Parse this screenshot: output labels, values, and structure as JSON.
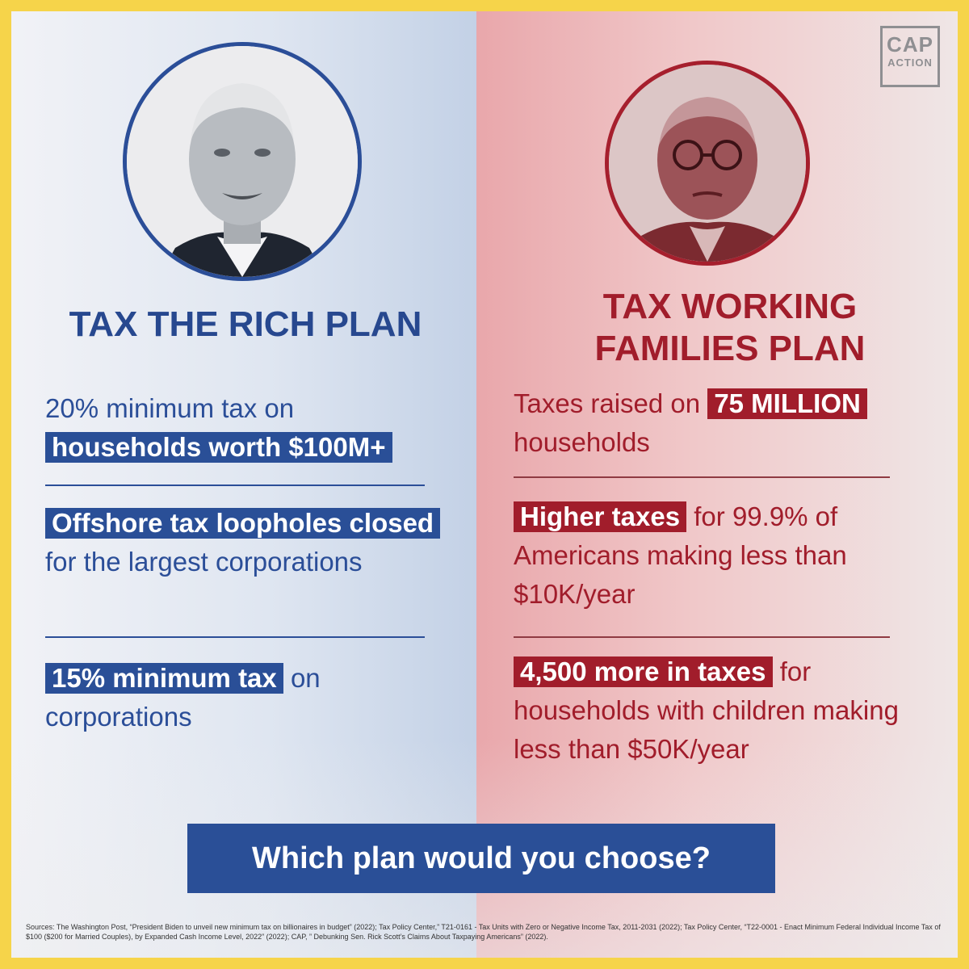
{
  "logo": {
    "line1": "CAP",
    "line2": "ACTION"
  },
  "left": {
    "title": "TAX THE RICH PLAN",
    "items": [
      {
        "before": "20% minimum tax on",
        "highlight": "households worth $100M+",
        "after": ""
      },
      {
        "before": "",
        "highlight": "Offshore tax loopholes closed",
        "after": "for the largest corporations"
      },
      {
        "before": "",
        "highlight": "15% minimum tax",
        "after": "on corporations"
      }
    ]
  },
  "right": {
    "title_line1": "TAX WORKING",
    "title_line2": "FAMILIES PLAN",
    "items": [
      {
        "before": "Taxes raised on",
        "highlight": "75 MILLION",
        "after": "households"
      },
      {
        "before": "",
        "highlight": "Higher taxes",
        "after": "for 99.9% of Americans making less than $10K/year"
      },
      {
        "before": "",
        "highlight": "4,500 more in taxes",
        "after": "for households with children making less than $50K/year"
      }
    ]
  },
  "cta": "Which plan would you choose?",
  "sources": "Sources: The Washington Post, “President Biden to unveil new minimum tax on billionaires in budget” (2022); Tax Policy Center,” T21-0161 - Tax Units with Zero or Negative Income Tax, 2011-2031 (2022); Tax Policy Center, “T22-0001 - Enact Minimum Federal Individual Income Tax of $100 ($200 for Married Couples), by Expanded Cash Income Level, 2022” (2022); CAP, ” Debunking Sen. Rick Scott’s Claims About Taxpaying Americans” (2022).",
  "colors": {
    "blue": "#2a4f97",
    "red": "#a11d2b",
    "frame": "#f6d44a"
  }
}
